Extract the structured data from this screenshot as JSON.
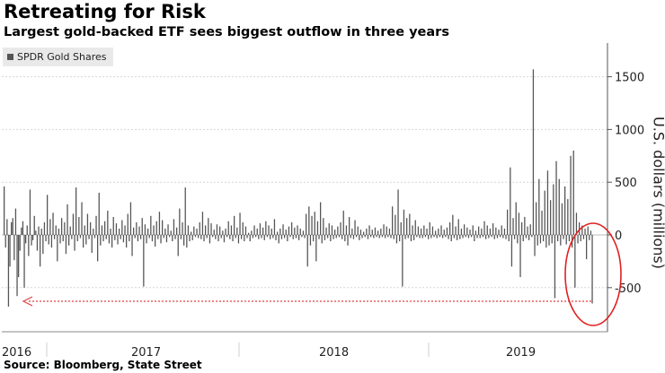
{
  "title": "Retreating for Risk",
  "subtitle": "Largest gold-backed ETF sees biggest outflow in three years",
  "source": "Source: Bloomberg, State Street",
  "chart_data": {
    "type": "bar",
    "legend": [
      {
        "name": "SPDR Gold Shares",
        "color": "#555555"
      }
    ],
    "ylabel": "U.S. dollars (millions)",
    "ylim": [
      -900,
      1800
    ],
    "yticks": [
      1500,
      1000,
      500,
      0,
      -500
    ],
    "x_labels": [
      "2016",
      "2017",
      "2018",
      "2019"
    ],
    "grid": true,
    "y_axis_position": "right",
    "annotation": "circle around final outflow with dotted arrow pointing left",
    "series": [
      {
        "name": "SPDR Gold Shares",
        "color": "#555555",
        "values": [
          460,
          -120,
          150,
          -680,
          -300,
          120,
          160,
          -240,
          250,
          -580,
          -400,
          -150,
          70,
          130,
          -500,
          -80,
          90,
          -200,
          430,
          -100,
          -50,
          180,
          40,
          -150,
          80,
          -300,
          60,
          -180,
          120,
          -60,
          380,
          -90,
          150,
          -120,
          210,
          -40,
          90,
          -250,
          60,
          -80,
          160,
          -60,
          120,
          -180,
          290,
          -100,
          80,
          -40,
          200,
          -150,
          450,
          -60,
          170,
          -30,
          310,
          -120,
          90,
          -90,
          200,
          -40,
          120,
          -170,
          60,
          -30,
          180,
          -250,
          400,
          -100,
          90,
          -60,
          130,
          -40,
          230,
          -80,
          60,
          -120,
          170,
          -50,
          110,
          -90,
          60,
          -40,
          140,
          -70,
          90,
          -120,
          200,
          -60,
          310,
          -200,
          70,
          -30,
          120,
          -60,
          80,
          -40,
          160,
          -490,
          100,
          -80,
          60,
          -30,
          180,
          -60,
          90,
          -110,
          130,
          -40,
          220,
          -80,
          140,
          -30,
          60,
          -70,
          100,
          -20,
          40,
          -60,
          150,
          -40,
          70,
          -200,
          250,
          -40,
          120,
          -100,
          450,
          -120,
          90,
          -60,
          30,
          -50,
          80,
          -20,
          60,
          -30,
          120,
          -40,
          220,
          -60,
          90,
          -30,
          160,
          -80,
          110,
          -20,
          50,
          -40,
          100,
          -60,
          80,
          -30,
          40,
          -70,
          60,
          -20,
          130,
          -40,
          90,
          -60,
          180,
          -30,
          70,
          -80,
          210,
          -40,
          120,
          -60,
          80,
          -30,
          20,
          -60,
          40,
          -30,
          90,
          -20,
          60,
          -40,
          110,
          -30,
          70,
          -50,
          130,
          -20,
          90,
          -40,
          60,
          -30,
          150,
          -50,
          30,
          -80,
          60,
          -40,
          100,
          -30,
          50,
          -60,
          80,
          -20,
          120,
          -40,
          70,
          -30,
          90,
          -50,
          60,
          -20,
          40,
          -30,
          200,
          -300,
          270,
          -100,
          180,
          -60,
          220,
          -250,
          130,
          -40,
          310,
          -80,
          160,
          -50,
          70,
          -30,
          110,
          -60,
          90,
          -40,
          50,
          -30,
          80,
          -20,
          120,
          -40,
          230,
          -60,
          90,
          -100,
          170,
          -30,
          60,
          -40,
          140,
          -20,
          80,
          -50,
          50,
          -30,
          30,
          -20,
          60,
          -40,
          90,
          -20,
          50,
          -30,
          70,
          -20,
          40,
          -30,
          60,
          -20,
          100,
          -30,
          80,
          -20,
          60,
          -30,
          270,
          -40,
          190,
          -80,
          430,
          -60,
          120,
          -490,
          240,
          -40,
          160,
          -30,
          200,
          -60,
          90,
          -50,
          140,
          -20,
          80,
          -30,
          60,
          -30,
          90,
          -20,
          60,
          -40,
          120,
          -30,
          80,
          -20,
          40,
          -30,
          60,
          -20,
          90,
          -30,
          50,
          -20,
          70,
          -40,
          120,
          -60,
          190,
          -30,
          80,
          -50,
          150,
          -40,
          60,
          -30,
          100,
          -20,
          70,
          -30,
          50,
          -20,
          90,
          -60,
          40,
          -30,
          80,
          -30,
          60,
          -20,
          130,
          -40,
          90,
          -30,
          60,
          -20,
          110,
          -40,
          70,
          -30,
          50,
          -20,
          90,
          -30,
          60,
          -40,
          240,
          -60,
          640,
          -300,
          160,
          -40,
          310,
          -80,
          210,
          -400,
          120,
          -60,
          170,
          -30,
          80,
          -50,
          100,
          -20,
          1570,
          -200,
          310,
          -100,
          530,
          -80,
          230,
          -60,
          420,
          -120,
          610,
          -100,
          330,
          -80,
          480,
          -600,
          700,
          -60,
          530,
          -100,
          300,
          -40,
          460,
          -90,
          340,
          -60,
          750,
          -120,
          800,
          -500,
          210,
          -80,
          120,
          -60,
          90,
          -40,
          60,
          -230,
          80,
          -50,
          40,
          -650
        ]
      }
    ]
  }
}
